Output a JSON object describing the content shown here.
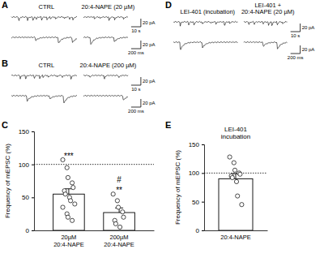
{
  "panels": [
    "A",
    "B",
    "C",
    "D",
    "E"
  ],
  "traces": [
    {
      "headings": [
        [
          "CTRL"
        ],
        [
          "20:4-NAPE (20 µM)"
        ]
      ],
      "scale_bars": [
        "20 pA",
        "10 s",
        "20 pA",
        "200 ms"
      ]
    },
    {
      "headings": [
        [
          "CTRL"
        ],
        [
          "20:4-NAPE (200 µM)"
        ]
      ],
      "scale_bars": [
        "20 pA",
        "10 s",
        "20 pA",
        "200 ms"
      ]
    },
    {
      "headings": [
        [
          "LEI-401 (incubation)"
        ],
        [
          "LEI-401 +",
          "20:4-NAPE (20 µM)"
        ]
      ],
      "scale_bars": [
        "20 pA",
        "10 s",
        "20 pA",
        "200 ms"
      ]
    }
  ],
  "chart_data": [
    {
      "type": "bar",
      "categories": [
        "20µM 20:4-NAPE",
        "200µM 20:4-NAPE"
      ],
      "values": [
        55,
        27
      ],
      "errors": [
        8,
        7
      ],
      "points": [
        [
          107,
          95,
          80,
          72,
          65,
          60,
          55,
          50,
          45,
          40,
          35,
          25,
          20,
          15
        ],
        [
          55,
          45,
          35,
          28,
          20,
          15,
          10,
          5
        ]
      ],
      "annotations": [
        [
          "***"
        ],
        [
          "#",
          "**"
        ]
      ],
      "reference_line": 100,
      "y_label": "Frequency of mEPSC (%)",
      "ylim": [
        0,
        150
      ],
      "yticks": [
        0,
        50,
        100,
        150
      ],
      "color": "#ffffff"
    },
    {
      "type": "bar",
      "title": "LEI-401 incubation",
      "categories": [
        "20:4-NAPE"
      ],
      "values": [
        90
      ],
      "errors": [
        9
      ],
      "points": [
        [
          128,
          118,
          105,
          100,
          98,
          95,
          92,
          85,
          60,
          45
        ]
      ],
      "reference_line": 100,
      "y_label": "Frequency of mEPSC (%)",
      "ylim": [
        0,
        150
      ],
      "yticks": [
        0,
        50,
        100,
        150
      ],
      "color": "#ffffff"
    }
  ]
}
